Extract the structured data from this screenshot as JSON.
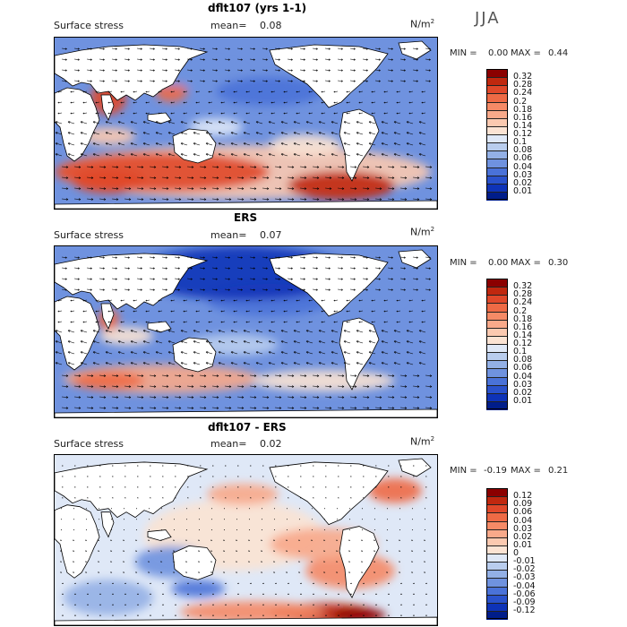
{
  "season": "JJA",
  "panels": [
    {
      "id": "model",
      "title": "dflt107 (yrs 1-1)",
      "variable": "Surface stress",
      "mean_label": "mean=",
      "mean_value": "0.08",
      "unit": "N/m",
      "unit_sup": "2",
      "min_label": "MIN =",
      "min_value": "0.00",
      "max_label": "MAX =",
      "max_value": "0.44",
      "levels": [
        "0.32",
        "0.28",
        "0.24",
        "0.2",
        "0.18",
        "0.16",
        "0.14",
        "0.12",
        "0.1",
        "0.08",
        "0.06",
        "0.04",
        "0.03",
        "0.02",
        "0.01"
      ],
      "colors": [
        "#8b0000",
        "#c0280f",
        "#e0482a",
        "#ee6a45",
        "#f58a66",
        "#f8a98a",
        "#fbc9b0",
        "#fbe3d3",
        "#dfe8f7",
        "#b9cdee",
        "#93b0e6",
        "#6f92df",
        "#4a72d8",
        "#2a52cc",
        "#0e33b8",
        "#001d8a"
      ]
    },
    {
      "id": "obs",
      "title": "ERS",
      "variable": "Surface stress",
      "mean_label": "mean=",
      "mean_value": "0.07",
      "unit": "N/m",
      "unit_sup": "2",
      "min_label": "MIN =",
      "min_value": "0.00",
      "max_label": "MAX =",
      "max_value": "0.30",
      "levels": [
        "0.32",
        "0.28",
        "0.24",
        "0.2",
        "0.18",
        "0.16",
        "0.14",
        "0.12",
        "0.1",
        "0.08",
        "0.06",
        "0.04",
        "0.03",
        "0.02",
        "0.01"
      ],
      "colors": [
        "#8b0000",
        "#c0280f",
        "#e0482a",
        "#ee6a45",
        "#f58a66",
        "#f8a98a",
        "#fbc9b0",
        "#fbe3d3",
        "#dfe8f7",
        "#b9cdee",
        "#93b0e6",
        "#6f92df",
        "#4a72d8",
        "#2a52cc",
        "#0e33b8",
        "#001d8a"
      ]
    },
    {
      "id": "diff",
      "title": "dflt107 - ERS",
      "variable": "Surface stress",
      "mean_label": "mean=",
      "mean_value": "0.02",
      "unit": "N/m",
      "unit_sup": "2",
      "min_label": "MIN =",
      "min_value": "-0.19",
      "max_label": "MAX =",
      "max_value": "0.21",
      "levels": [
        "0.12",
        "0.09",
        "0.06",
        "0.04",
        "0.03",
        "0.02",
        "0.01",
        "0",
        "-0.01",
        "-0.02",
        "-0.03",
        "-0.04",
        "-0.06",
        "-0.09",
        "-0.12"
      ],
      "colors": [
        "#8b0000",
        "#c0280f",
        "#e0482a",
        "#ee6a45",
        "#f58a66",
        "#f8a98a",
        "#fbc9b0",
        "#fbe3d3",
        "#dfe8f7",
        "#b9cdee",
        "#93b0e6",
        "#6f92df",
        "#4a72d8",
        "#2a52cc",
        "#0e33b8",
        "#001d8a"
      ]
    }
  ]
}
